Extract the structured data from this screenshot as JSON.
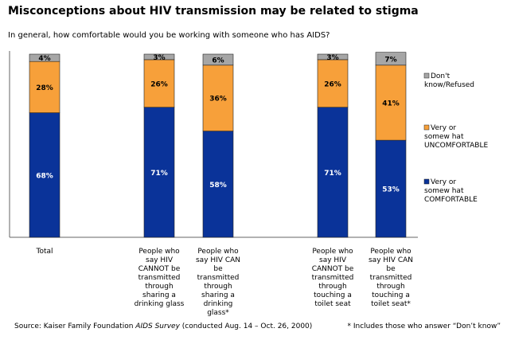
{
  "title": "Misconceptions about HIV transmission may be related to stigma",
  "subtitle": "In general, how comfortable would you be working with someone who has AIDS?",
  "footer": {
    "source_prefix": "Source: Kaiser Family Foundation ",
    "source_italic": "AIDS Survey",
    "source_suffix": " (conducted Aug. 14 – Oct. 26, 2000)",
    "footnote": "* Includes those who answer “Don’t know”"
  },
  "chart_data": {
    "type": "bar",
    "stacked": true,
    "percent_scale": true,
    "ylim": [
      0,
      100
    ],
    "categories": [
      [
        "Total"
      ],
      [
        "People who",
        "say HIV",
        "CANNOT be",
        "transmitted",
        "through",
        "sharing a",
        "drinking glass"
      ],
      [
        "People who",
        "say HIV CAN",
        "be",
        "transmitted",
        "through",
        "sharing a",
        "drinking",
        "glass*"
      ],
      [
        "People who",
        "say HIV",
        "CANNOT be",
        "transmitted",
        "through",
        "touching a",
        "toilet seat"
      ],
      [
        "People who",
        "say HIV CAN",
        "be",
        "transmitted",
        "through",
        "touching a",
        "toilet seat*"
      ]
    ],
    "series": [
      {
        "name": [
          "Very or",
          "somew hat",
          "COMFORTABLE"
        ],
        "color": "#0a3399",
        "values": [
          68,
          71,
          58,
          71,
          53
        ]
      },
      {
        "name": [
          "Very or",
          "somew hat",
          "UNCOMFORTABLE"
        ],
        "color": "#f7a03a",
        "values": [
          28,
          26,
          36,
          26,
          41
        ]
      },
      {
        "name": [
          "Don't",
          "know/Refused"
        ],
        "color": "#a6a6a6",
        "values": [
          4,
          3,
          6,
          3,
          7
        ]
      }
    ],
    "value_suffix": "%"
  }
}
